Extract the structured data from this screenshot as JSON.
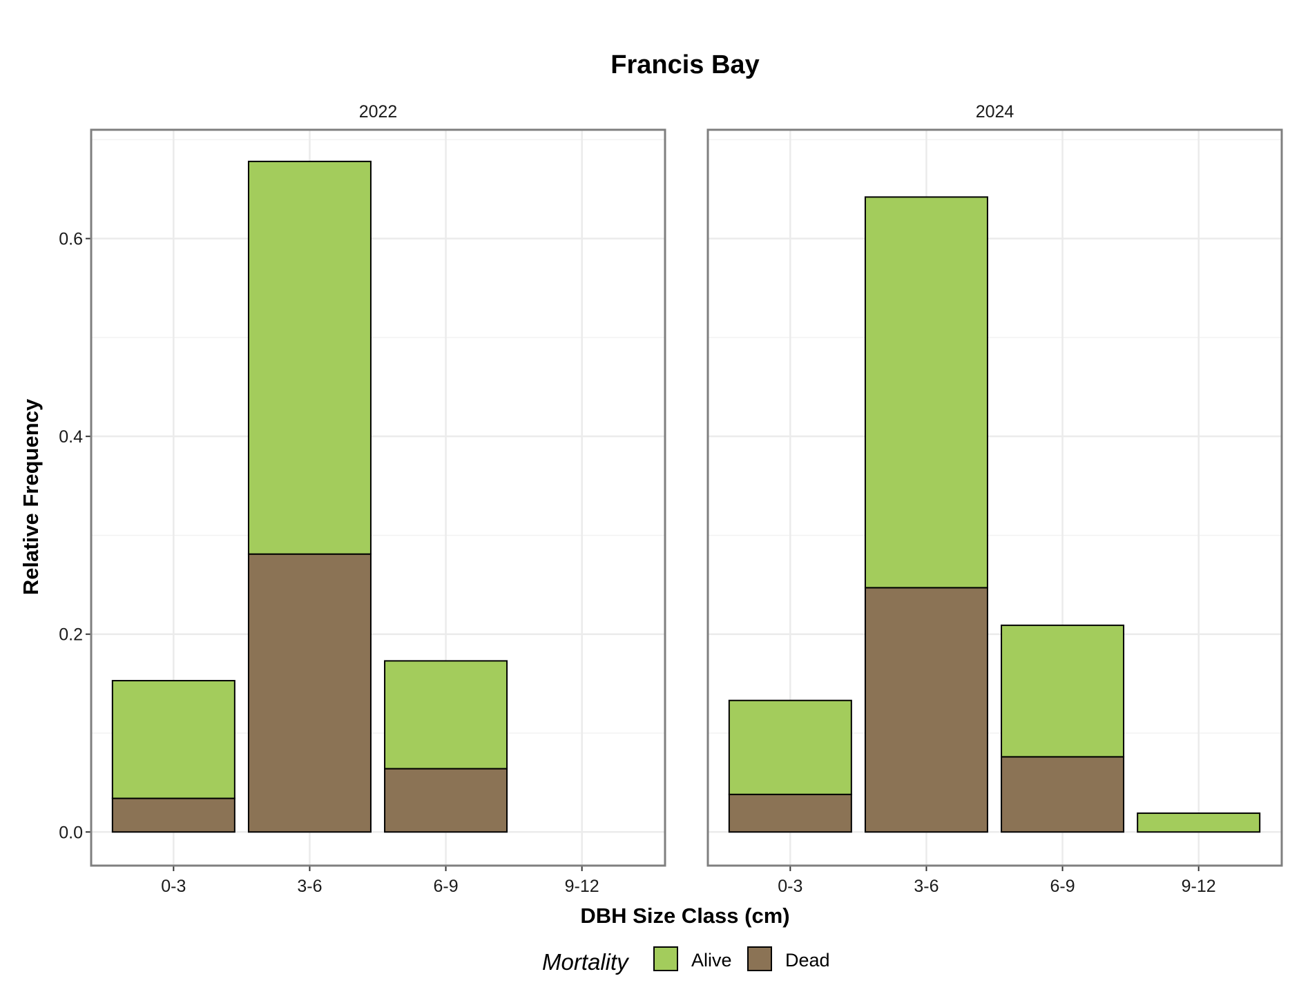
{
  "chart_data": {
    "type": "bar",
    "stacked": true,
    "title": "Francis Bay",
    "xlabel": "DBH Size Class (cm)",
    "ylabel": "Relative Frequency",
    "ylim": [
      -0.034,
      0.71
    ],
    "yticks": [
      "0.0",
      "0.2",
      "0.4",
      "0.6"
    ],
    "grid": true,
    "legend": {
      "title": "Mortality",
      "position": "bottom",
      "entries": [
        {
          "name": "Alive",
          "color": "#a3cc5c"
        },
        {
          "name": "Dead",
          "color": "#8b7355"
        }
      ]
    },
    "categories": [
      "0-3",
      "3-6",
      "6-9",
      "9-12"
    ],
    "facets": [
      {
        "label": "2022",
        "series": [
          {
            "name": "Dead",
            "values": [
              0.034,
              0.281,
              0.064,
              0
            ]
          },
          {
            "name": "Alive",
            "values": [
              0.119,
              0.397,
              0.109,
              0
            ]
          }
        ]
      },
      {
        "label": "2024",
        "series": [
          {
            "name": "Dead",
            "values": [
              0.038,
              0.247,
              0.076,
              0
            ]
          },
          {
            "name": "Alive",
            "values": [
              0.095,
              0.395,
              0.133,
              0.019
            ]
          }
        ]
      }
    ]
  }
}
